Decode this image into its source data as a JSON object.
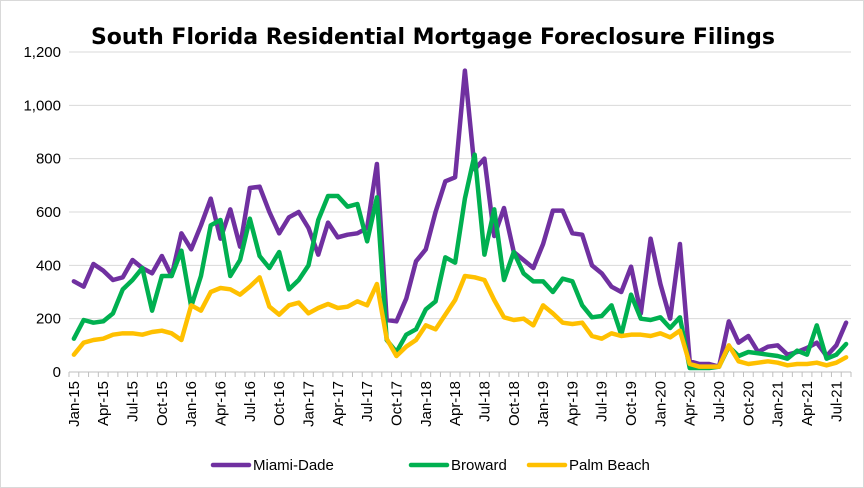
{
  "chart_data": {
    "type": "line",
    "title": "South Florida Residential Mortgage Foreclosure Filings",
    "xlabel": "",
    "ylabel": "",
    "ylim": [
      0,
      1200
    ],
    "yticks": [
      "0",
      "200",
      "400",
      "600",
      "800",
      "1,000",
      "1,200"
    ],
    "ytick_values": [
      0,
      200,
      400,
      600,
      800,
      1000,
      1200
    ],
    "x_months": [
      "Jan-15",
      "Feb-15",
      "Mar-15",
      "Apr-15",
      "May-15",
      "Jun-15",
      "Jul-15",
      "Aug-15",
      "Sep-15",
      "Oct-15",
      "Nov-15",
      "Dec-15",
      "Jan-16",
      "Feb-16",
      "Mar-16",
      "Apr-16",
      "May-16",
      "Jun-16",
      "Jul-16",
      "Aug-16",
      "Sep-16",
      "Oct-16",
      "Nov-16",
      "Dec-16",
      "Jan-17",
      "Feb-17",
      "Mar-17",
      "Apr-17",
      "May-17",
      "Jun-17",
      "Jul-17",
      "Aug-17",
      "Sep-17",
      "Oct-17",
      "Nov-17",
      "Dec-17",
      "Jan-18",
      "Feb-18",
      "Mar-18",
      "Apr-18",
      "May-18",
      "Jun-18",
      "Jul-18",
      "Aug-18",
      "Sep-18",
      "Oct-18",
      "Nov-18",
      "Dec-18",
      "Jan-19",
      "Feb-19",
      "Mar-19",
      "Apr-19",
      "May-19",
      "Jun-19",
      "Jul-19",
      "Aug-19",
      "Sep-19",
      "Oct-19",
      "Nov-19",
      "Dec-19",
      "Jan-20",
      "Feb-20",
      "Mar-20",
      "Apr-20",
      "May-20",
      "Jun-20",
      "Jul-20",
      "Aug-20",
      "Sep-20",
      "Oct-20",
      "Nov-20",
      "Dec-20",
      "Jan-21",
      "Feb-21",
      "Mar-21",
      "Apr-21",
      "May-21",
      "Jun-21",
      "Jul-21",
      "Aug-21"
    ],
    "x_tick_labels": [
      "Jan-15",
      "Apr-15",
      "Jul-15",
      "Oct-15",
      "Jan-16",
      "Apr-16",
      "Jul-16",
      "Oct-16",
      "Jan-17",
      "Apr-17",
      "Jul-17",
      "Oct-17",
      "Jan-18",
      "Apr-18",
      "Jul-18",
      "Oct-18",
      "Jan-19",
      "Apr-19",
      "Jul-19",
      "Oct-19",
      "Jan-20",
      "Apr-20",
      "Jul-20",
      "Oct-20",
      "Jan-21",
      "Apr-21",
      "Jul-21"
    ],
    "grid": "horizontal",
    "legend_position": "bottom",
    "series": [
      {
        "name": "Miami-Dade",
        "color": "#7030a0",
        "values": [
          340,
          320,
          405,
          380,
          345,
          355,
          420,
          390,
          370,
          435,
          360,
          520,
          460,
          550,
          650,
          500,
          610,
          470,
          690,
          695,
          600,
          520,
          580,
          600,
          540,
          440,
          560,
          505,
          515,
          520,
          540,
          780,
          195,
          190,
          275,
          415,
          460,
          600,
          715,
          730,
          1130,
          760,
          800,
          510,
          615,
          450,
          420,
          390,
          480,
          605,
          605,
          520,
          515,
          400,
          370,
          320,
          300,
          395,
          220,
          500,
          330,
          200,
          480,
          40,
          30,
          30,
          20,
          190,
          110,
          135,
          75,
          95,
          100,
          65,
          75,
          90,
          110,
          60,
          100,
          185
        ]
      },
      {
        "name": "Broward",
        "color": "#00b050",
        "values": [
          125,
          195,
          185,
          190,
          220,
          310,
          345,
          390,
          230,
          360,
          360,
          455,
          245,
          360,
          550,
          570,
          360,
          420,
          575,
          435,
          390,
          450,
          310,
          345,
          400,
          570,
          660,
          660,
          620,
          630,
          490,
          655,
          120,
          75,
          140,
          160,
          235,
          265,
          430,
          410,
          650,
          815,
          440,
          610,
          345,
          450,
          370,
          340,
          340,
          300,
          350,
          340,
          250,
          205,
          210,
          250,
          140,
          290,
          200,
          195,
          205,
          165,
          205,
          15,
          15,
          15,
          20,
          95,
          60,
          75,
          70,
          65,
          60,
          50,
          80,
          65,
          175,
          50,
          65,
          105
        ]
      },
      {
        "name": "Palm Beach",
        "color": "#ffc000",
        "values": [
          65,
          110,
          120,
          125,
          140,
          145,
          145,
          140,
          150,
          155,
          145,
          120,
          250,
          230,
          300,
          315,
          310,
          290,
          320,
          355,
          245,
          215,
          250,
          260,
          220,
          240,
          255,
          240,
          245,
          265,
          250,
          330,
          125,
          60,
          95,
          120,
          175,
          160,
          215,
          270,
          360,
          355,
          345,
          270,
          205,
          195,
          200,
          175,
          250,
          220,
          185,
          180,
          185,
          135,
          125,
          145,
          135,
          140,
          140,
          135,
          145,
          130,
          155,
          30,
          20,
          20,
          20,
          100,
          40,
          30,
          35,
          40,
          35,
          25,
          30,
          30,
          35,
          25,
          35,
          55
        ]
      }
    ]
  }
}
